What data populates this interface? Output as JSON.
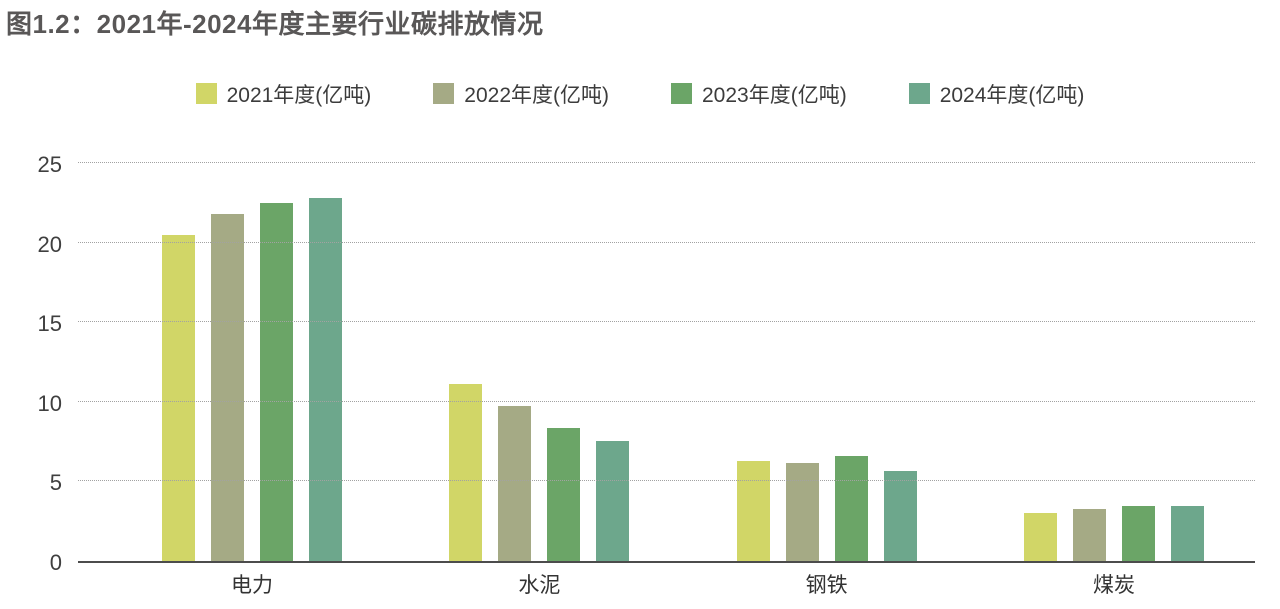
{
  "chart_data": {
    "type": "bar",
    "title": "图1.2：2021年-2024年度主要行业碳排放情况",
    "categories": [
      "电力",
      "水泥",
      "钢铁",
      "煤炭"
    ],
    "series": [
      {
        "name": "2021年度(亿吨)",
        "color": "#d1d667",
        "values": [
          20.6,
          11.2,
          6.3,
          3.0
        ]
      },
      {
        "name": "2022年度(亿吨)",
        "color": "#a5aa85",
        "values": [
          21.9,
          9.8,
          6.2,
          3.3
        ]
      },
      {
        "name": "2023年度(亿吨)",
        "color": "#6ba567",
        "values": [
          22.6,
          8.4,
          6.6,
          3.5
        ]
      },
      {
        "name": "2024年度(亿吨)",
        "color": "#6da78c",
        "values": [
          22.9,
          7.6,
          5.7,
          3.5
        ]
      }
    ],
    "xlabel": "",
    "ylabel": "",
    "ylim": [
      0,
      25
    ],
    "yticks": [
      0,
      5,
      10,
      15,
      20,
      25
    ],
    "grid": "horizontal-dotted",
    "legend_position": "top-center"
  },
  "colors": {
    "title_text": "#595757",
    "axis_line": "#4c4c4c",
    "grid_line": "#a2a2a2",
    "tick_text": "#3f3f3f"
  }
}
